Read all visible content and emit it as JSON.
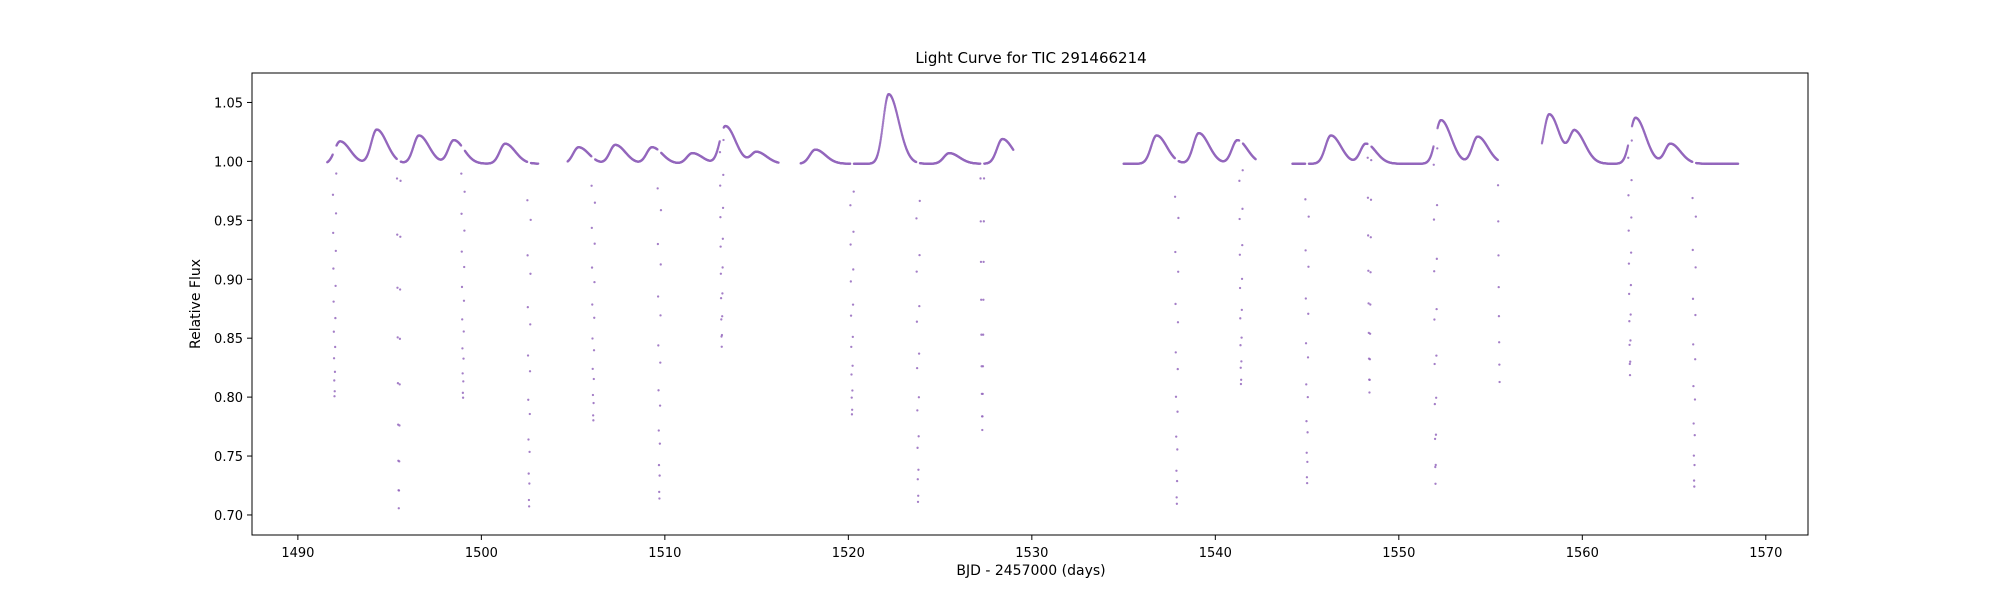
{
  "chart_data": {
    "type": "scatter",
    "title": "Light Curve for TIC 291466214",
    "xlabel": "BJD - 2457000 (days)",
    "ylabel": "Relative Flux",
    "xlim": [
      1487.5,
      1572.3
    ],
    "ylim": [
      0.683,
      1.075
    ],
    "xticks": [
      1490,
      1500,
      1510,
      1520,
      1530,
      1540,
      1550,
      1560,
      1570
    ],
    "yticks": [
      0.7,
      0.75,
      0.8,
      0.85,
      0.9,
      0.95,
      1.0,
      1.05
    ],
    "grid": false,
    "legend": "none",
    "marker_color": "#9467bd",
    "segments": [
      [
        1491.6,
        1503.1
      ],
      [
        1504.7,
        1516.2
      ],
      [
        1517.4,
        1529.0
      ],
      [
        1535.0,
        1542.2
      ],
      [
        1544.2,
        1555.5
      ],
      [
        1557.8,
        1568.5
      ]
    ],
    "primary_eclipses": [
      {
        "t": 1495.5,
        "depth": 0.705
      },
      {
        "t": 1502.6,
        "depth": 0.705
      },
      {
        "t": 1509.7,
        "depth": 0.702
      },
      {
        "t": 1523.8,
        "depth": 0.709
      },
      {
        "t": 1537.9,
        "depth": 0.705
      },
      {
        "t": 1545.0,
        "depth": 0.726
      },
      {
        "t": 1552.0,
        "depth": 0.706
      },
      {
        "t": 1566.1,
        "depth": 0.722
      }
    ],
    "secondary_eclipses": [
      {
        "t": 1492.0,
        "depth": 0.789
      },
      {
        "t": 1499.0,
        "depth": 0.786
      },
      {
        "t": 1506.1,
        "depth": 0.775
      },
      {
        "t": 1513.1,
        "depth": 0.819
      },
      {
        "t": 1520.2,
        "depth": 0.785
      },
      {
        "t": 1527.3,
        "depth": 0.774
      },
      {
        "t": 1541.4,
        "depth": 0.792
      },
      {
        "t": 1548.4,
        "depth": 0.79
      },
      {
        "t": 1555.5,
        "depth": 0.807
      },
      {
        "t": 1562.6,
        "depth": 0.797
      }
    ],
    "flares": [
      {
        "t": 1492.3,
        "peak": 1.017
      },
      {
        "t": 1494.3,
        "peak": 1.027
      },
      {
        "t": 1496.6,
        "peak": 1.022
      },
      {
        "t": 1498.5,
        "peak": 1.018
      },
      {
        "t": 1501.3,
        "peak": 1.015
      },
      {
        "t": 1505.3,
        "peak": 1.012
      },
      {
        "t": 1507.3,
        "peak": 1.014
      },
      {
        "t": 1509.3,
        "peak": 1.012
      },
      {
        "t": 1511.5,
        "peak": 1.007
      },
      {
        "t": 1513.3,
        "peak": 1.03
      },
      {
        "t": 1515.0,
        "peak": 1.008
      },
      {
        "t": 1518.2,
        "peak": 1.01
      },
      {
        "t": 1522.2,
        "peak": 1.057
      },
      {
        "t": 1525.5,
        "peak": 1.007
      },
      {
        "t": 1528.4,
        "peak": 1.019
      },
      {
        "t": 1536.8,
        "peak": 1.022
      },
      {
        "t": 1539.1,
        "peak": 1.024
      },
      {
        "t": 1541.2,
        "peak": 1.018
      },
      {
        "t": 1546.3,
        "peak": 1.022
      },
      {
        "t": 1548.2,
        "peak": 1.015
      },
      {
        "t": 1552.3,
        "peak": 1.035
      },
      {
        "t": 1554.3,
        "peak": 1.021
      },
      {
        "t": 1558.2,
        "peak": 1.04
      },
      {
        "t": 1559.6,
        "peak": 1.025
      },
      {
        "t": 1562.9,
        "peak": 1.037
      },
      {
        "t": 1564.8,
        "peak": 1.015
      }
    ]
  }
}
